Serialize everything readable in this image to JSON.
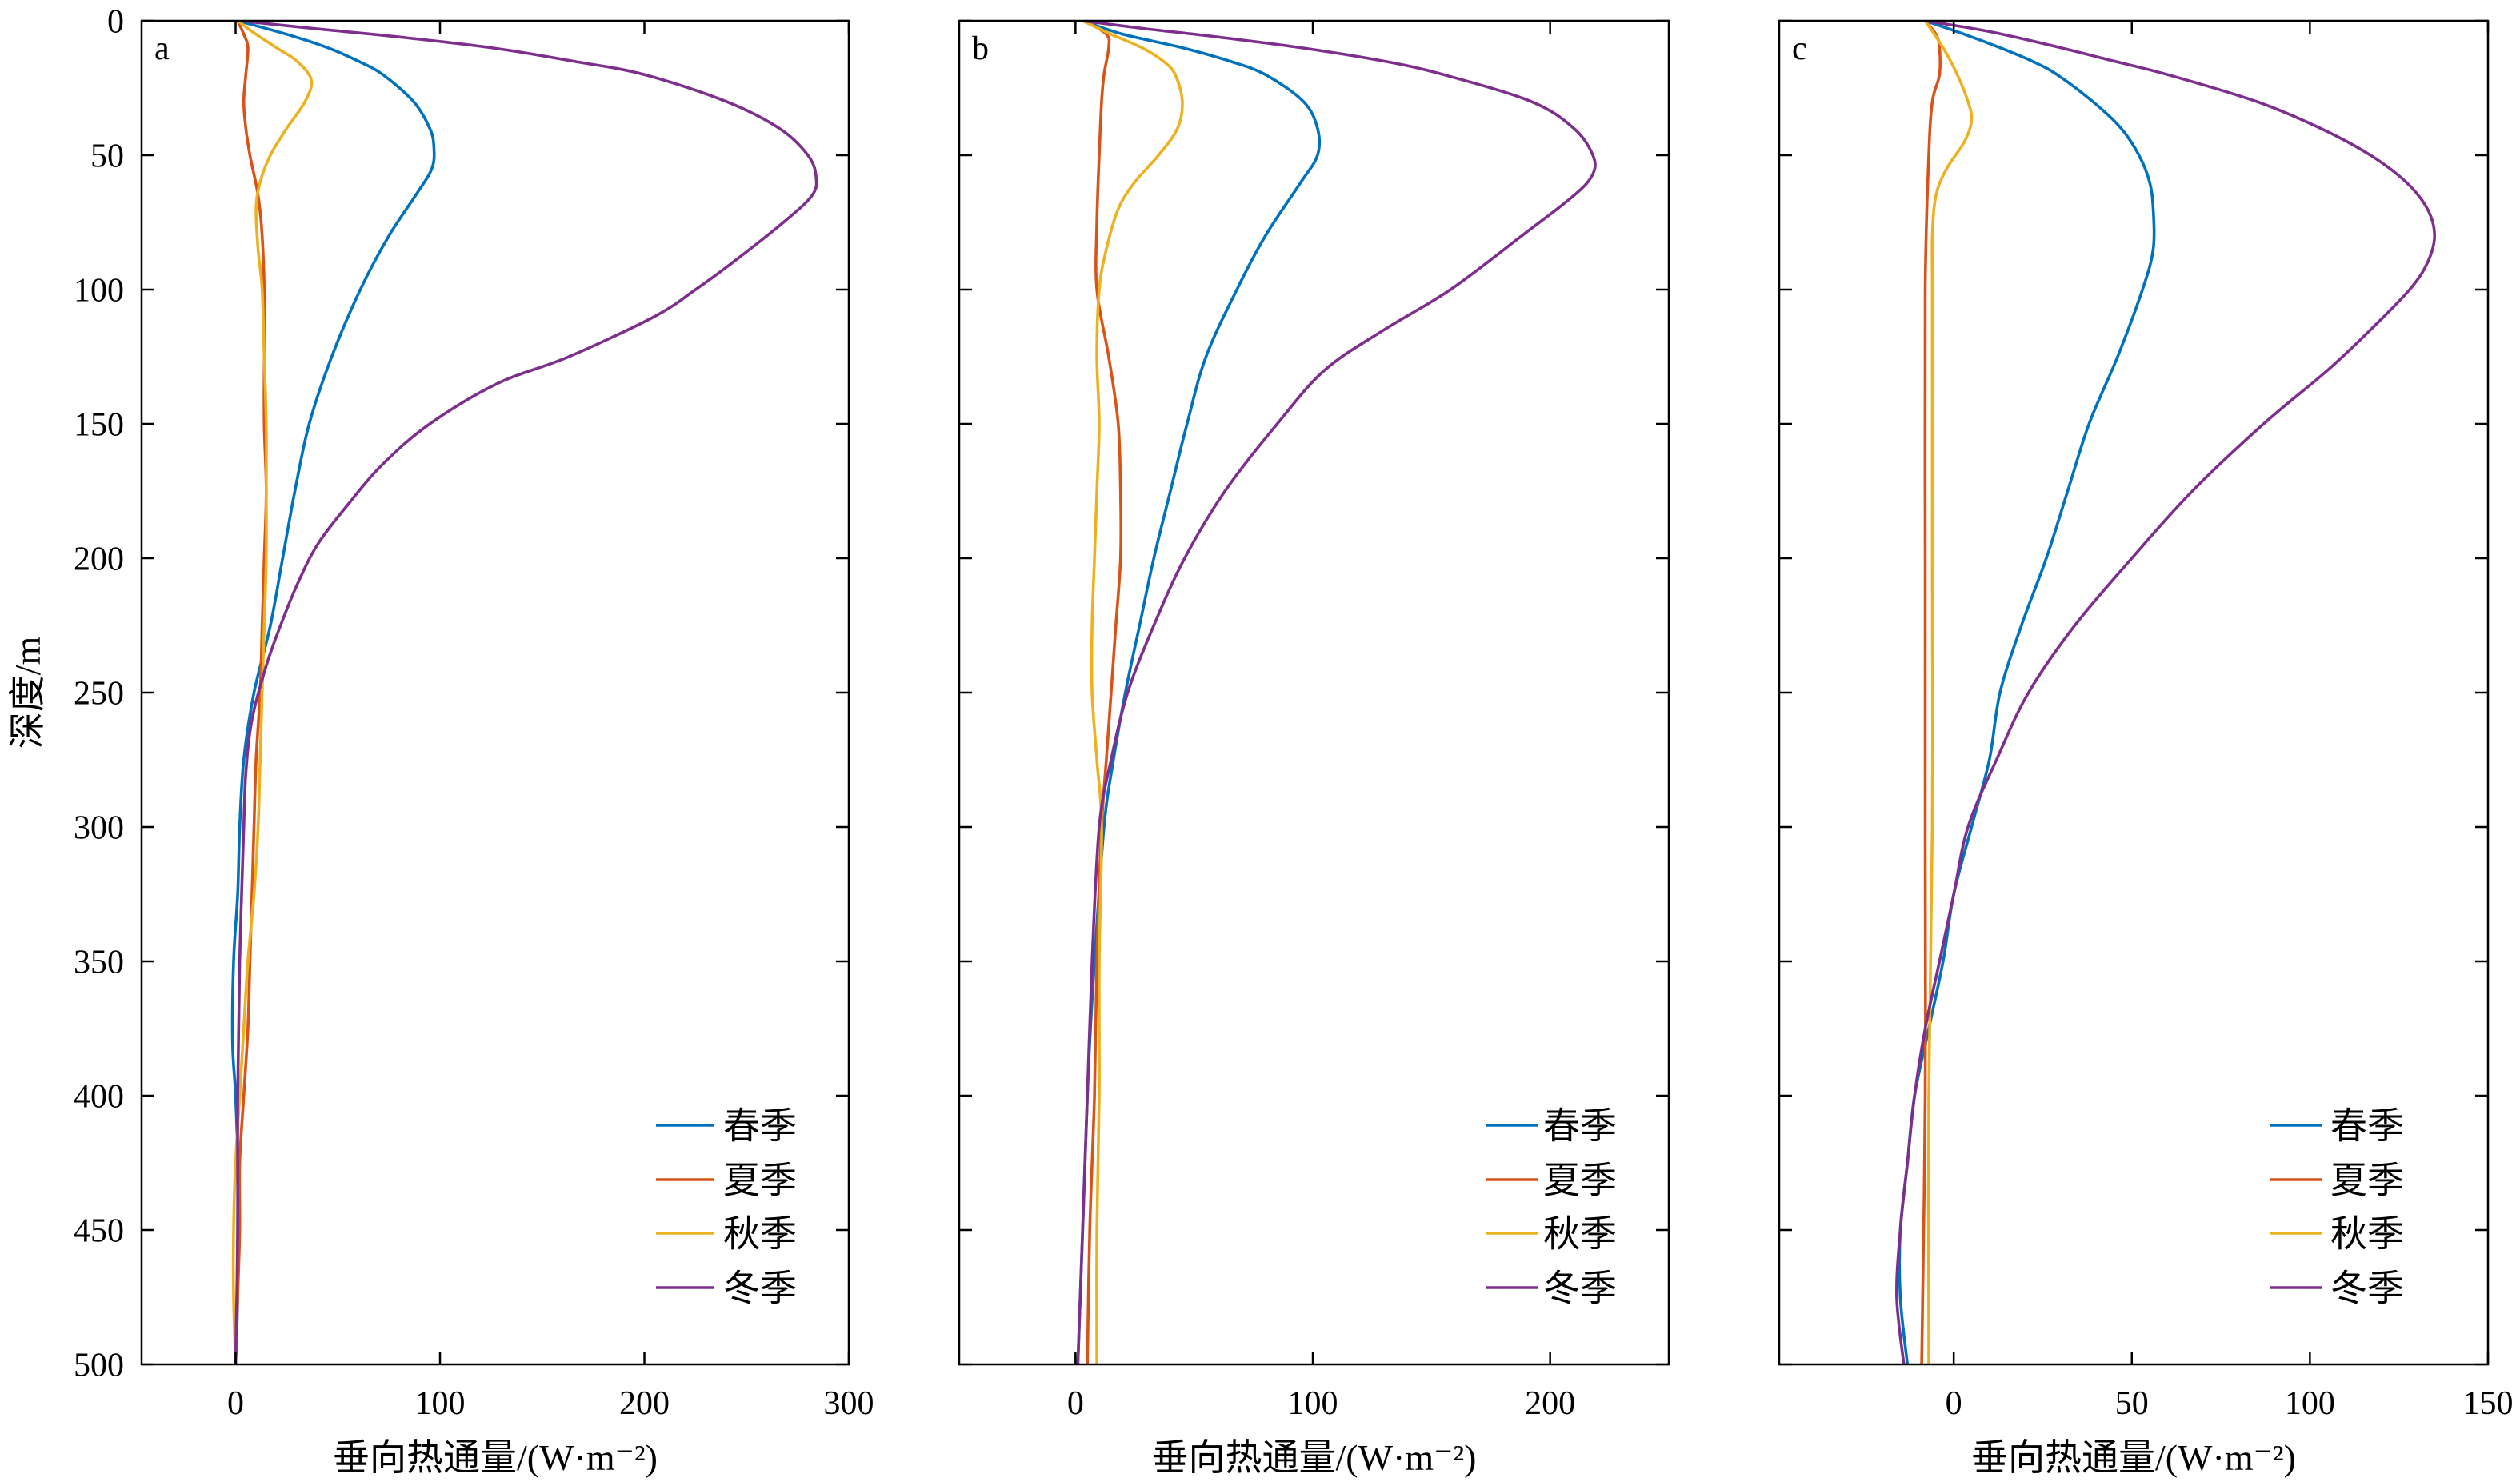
{
  "chart_data": [
    {
      "type": "line",
      "panel_label": "a",
      "xlabel": "垂向热通量/(W·m⁻²)",
      "ylabel": "深度/m",
      "xlim": [
        -46,
        300
      ],
      "ylim": [
        0,
        500
      ],
      "ydir": "reverse",
      "xticks": [
        0,
        100,
        200,
        300
      ],
      "xtick_labels": [
        "0",
        "100",
        "200",
        "300"
      ],
      "yticks": [
        0,
        50,
        100,
        150,
        200,
        250,
        300,
        350,
        400,
        450,
        500
      ],
      "ytick_labels": [
        "0",
        "50",
        "100",
        "150",
        "200",
        "250",
        "300",
        "350",
        "400",
        "450",
        "500"
      ],
      "grid": false,
      "legend": "bottom-right",
      "series": [
        {
          "name": "春季",
          "color": "#0072BD",
          "x": [
            1,
            25,
            45,
            60,
            72,
            87,
            95,
            97,
            96,
            88,
            75,
            61,
            47,
            36,
            29,
            23,
            17,
            9,
            4,
            2,
            1,
            -1,
            -1.5,
            0,
            1,
            1,
            1,
            0
          ],
          "y": [
            0,
            5,
            10,
            15,
            20,
            30,
            40,
            47,
            55,
            65,
            80,
            100,
            125,
            150,
            175,
            200,
            225,
            250,
            275,
            300,
            325,
            350,
            380,
            400,
            425,
            450,
            475,
            500
          ]
        },
        {
          "name": "夏季",
          "color": "#D95319",
          "x": [
            1,
            4,
            6,
            5,
            4,
            5,
            7,
            11,
            13,
            14,
            14,
            14,
            15,
            14,
            13,
            12,
            10,
            9,
            8,
            7,
            6,
            4,
            2,
            2,
            1,
            0
          ],
          "y": [
            0,
            5,
            10,
            20,
            30,
            40,
            50,
            65,
            80,
            100,
            125,
            150,
            175,
            200,
            225,
            250,
            275,
            300,
            325,
            350,
            375,
            400,
            425,
            450,
            475,
            500
          ]
        },
        {
          "name": "秋季",
          "color": "#EDB120",
          "x": [
            1,
            10,
            20,
            30,
            37,
            34,
            25,
            17,
            12,
            10,
            11,
            13,
            14,
            15,
            15,
            15,
            14,
            13,
            12,
            11,
            9,
            6,
            4,
            2,
            0,
            -1,
            -1,
            0
          ],
          "y": [
            0,
            5,
            10,
            15,
            22,
            30,
            40,
            50,
            60,
            70,
            85,
            100,
            125,
            150,
            175,
            200,
            225,
            250,
            275,
            300,
            325,
            350,
            375,
            400,
            425,
            450,
            475,
            500
          ]
        },
        {
          "name": "冬季",
          "color": "#7E2F8E",
          "x": [
            2,
            40,
            80,
            125,
            165,
            200,
            240,
            266,
            280,
            284,
            282,
            268,
            243,
            225,
            205,
            163,
            128,
            95,
            72,
            55,
            40,
            30,
            22,
            15,
            8,
            5,
            4,
            2,
            1,
            1,
            0
          ],
          "y": [
            0,
            3,
            6,
            10,
            15,
            20,
            30,
            40,
            50,
            58,
            65,
            75,
            90,
            100,
            110,
            125,
            135,
            150,
            165,
            180,
            195,
            210,
            225,
            240,
            260,
            280,
            300,
            350,
            400,
            450,
            500
          ]
        }
      ]
    },
    {
      "type": "line",
      "panel_label": "b",
      "xlabel": "垂向热通量/(W·m⁻²)",
      "xlim": [
        -49,
        250
      ],
      "ylim": [
        0,
        500
      ],
      "ydir": "reverse",
      "xticks": [
        0,
        100,
        200
      ],
      "xtick_labels": [
        "0",
        "100",
        "200"
      ],
      "yticks": [
        0,
        50,
        100,
        150,
        200,
        250,
        300,
        350,
        400,
        450,
        500
      ],
      "grid": false,
      "legend": "bottom-right",
      "series": [
        {
          "name": "春季",
          "color": "#0072BD",
          "x": [
            3,
            20,
            45,
            65,
            80,
            96,
            102,
            102,
            95,
            80,
            68,
            55,
            47,
            40,
            33,
            27,
            21,
            16,
            12,
            8,
            6,
            5,
            3,
            1
          ],
          "y": [
            0,
            5,
            10,
            15,
            20,
            30,
            40,
            50,
            60,
            80,
            100,
            125,
            150,
            175,
            200,
            225,
            250,
            275,
            300,
            350,
            380,
            400,
            450,
            500
          ]
        },
        {
          "name": "夏季",
          "color": "#D95319",
          "x": [
            4,
            13,
            14,
            12,
            11,
            10,
            9,
            9,
            14,
            18,
            19,
            19,
            17,
            15,
            13,
            11,
            9,
            8,
            6,
            5
          ],
          "y": [
            0,
            5,
            10,
            20,
            30,
            50,
            75,
            100,
            125,
            150,
            175,
            200,
            225,
            250,
            275,
            300,
            350,
            400,
            450,
            500
          ]
        },
        {
          "name": "秋季",
          "color": "#EDB120",
          "x": [
            3,
            15,
            28,
            37,
            42,
            45,
            43,
            35,
            25,
            18,
            13,
            10,
            9,
            10,
            9,
            8,
            7,
            7,
            9,
            11,
            10,
            10,
            9,
            9
          ],
          "y": [
            0,
            5,
            10,
            15,
            20,
            30,
            40,
            50,
            60,
            70,
            85,
            100,
            125,
            150,
            175,
            200,
            225,
            250,
            275,
            300,
            350,
            400,
            450,
            500
          ]
        },
        {
          "name": "冬季",
          "color": "#7E2F8E",
          "x": [
            3,
            30,
            60,
            95,
            130,
            155,
            192,
            210,
            218,
            218,
            210,
            188,
            158,
            130,
            105,
            85,
            63,
            46,
            33,
            22,
            15,
            10,
            7,
            5,
            3,
            1
          ],
          "y": [
            0,
            3,
            6,
            10,
            15,
            20,
            30,
            40,
            50,
            57,
            65,
            80,
            100,
            115,
            130,
            150,
            175,
            200,
            225,
            250,
            275,
            300,
            350,
            400,
            450,
            500
          ]
        }
      ]
    },
    {
      "type": "line",
      "panel_label": "c",
      "xlabel": "垂向热通量/(W·m⁻²)",
      "xlim": [
        -49,
        150
      ],
      "ylim": [
        0,
        500
      ],
      "ydir": "reverse",
      "xticks": [
        0,
        50,
        100,
        150
      ],
      "xtick_labels": [
        "0",
        "50",
        "100",
        "150"
      ],
      "yticks": [
        0,
        50,
        100,
        150,
        200,
        250,
        300,
        350,
        400,
        450,
        500
      ],
      "grid": false,
      "legend": "bottom-right",
      "series": [
        {
          "name": "春季",
          "color": "#0072BD",
          "x": [
            -8,
            3,
            13,
            22,
            29,
            39,
            47,
            52,
            55,
            56,
            56,
            53,
            46,
            38,
            32,
            26,
            19,
            13,
            10,
            5,
            0,
            -3,
            -7,
            -11,
            -13,
            -15,
            -15,
            -13
          ],
          "y": [
            0,
            5,
            10,
            15,
            20,
            30,
            40,
            50,
            60,
            70,
            85,
            100,
            125,
            150,
            175,
            200,
            225,
            250,
            275,
            300,
            325,
            350,
            375,
            400,
            425,
            450,
            475,
            500
          ]
        },
        {
          "name": "夏季",
          "color": "#D95319",
          "x": [
            -8,
            -5,
            -4,
            -4,
            -6,
            -7,
            -8,
            -8,
            -8,
            -8,
            -9
          ],
          "y": [
            0,
            5,
            10,
            20,
            30,
            50,
            100,
            200,
            300,
            400,
            500
          ]
        },
        {
          "name": "秋季",
          "color": "#EDB120",
          "x": [
            -8,
            -3,
            1,
            4,
            5,
            3,
            -2,
            -5,
            -6,
            -6,
            -6,
            -6,
            -7,
            -7
          ],
          "y": [
            0,
            10,
            20,
            30,
            37,
            45,
            55,
            65,
            80,
            100,
            200,
            300,
            400,
            500
          ]
        },
        {
          "name": "冬季",
          "color": "#7E2F8E",
          "x": [
            -8,
            10,
            30,
            45,
            60,
            85,
            103,
            117,
            127,
            133,
            135,
            133,
            128,
            117,
            105,
            87,
            67,
            50,
            34,
            21,
            12,
            4,
            0,
            -4,
            -8,
            -11,
            -13,
            -15,
            -16,
            -14
          ],
          "y": [
            0,
            4,
            10,
            15,
            20,
            30,
            40,
            50,
            60,
            70,
            80,
            90,
            100,
            115,
            130,
            150,
            175,
            200,
            225,
            250,
            275,
            300,
            325,
            350,
            375,
            400,
            425,
            450,
            475,
            500
          ]
        }
      ]
    }
  ]
}
